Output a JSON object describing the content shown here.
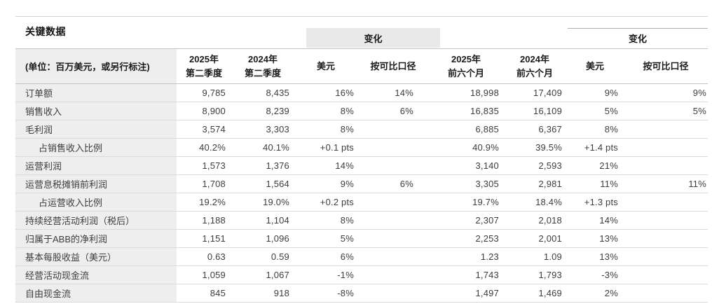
{
  "page": {
    "title": "关键数据"
  },
  "colors": {
    "label_column_bg": "#eeeeee",
    "change_box_bg": "#e9e9e9",
    "row_divider": "#dadada",
    "header_divider": "#c2c2c2",
    "text": "#3d3d3d",
    "heading_text": "#161616"
  },
  "table": {
    "unit_note": "(单位：百万美元，或另行标注)",
    "change_group_quarter": "变化",
    "change_group_half": "变化",
    "col_headers": [
      "2025年\n第二季度",
      "2024年\n第二季度",
      "美元",
      "按可比口径",
      "2025年\n前六个月",
      "2024年\n前六个月",
      "美元",
      "按可比口径"
    ],
    "rows": [
      {
        "label": "订单额",
        "indent": false,
        "c": [
          "9,785",
          "8,435",
          "16%",
          "14%",
          "18,998",
          "17,409",
          "9%",
          "9%"
        ]
      },
      {
        "label": "销售收入",
        "indent": false,
        "c": [
          "8,900",
          "8,239",
          "8%",
          "6%",
          "16,835",
          "16,109",
          "5%",
          "5%"
        ]
      },
      {
        "label": "毛利润",
        "indent": false,
        "c": [
          "3,574",
          "3,303",
          "8%",
          "",
          "6,885",
          "6,367",
          "8%",
          ""
        ]
      },
      {
        "label": "占销售收入比例",
        "indent": true,
        "c": [
          "40.2%",
          "40.1%",
          "+0.1 pts",
          "",
          "40.9%",
          "39.5%",
          "+1.4 pts",
          ""
        ]
      },
      {
        "label": "运营利润",
        "indent": false,
        "c": [
          "1,573",
          "1,376",
          "14%",
          "",
          "3,140",
          "2,593",
          "21%",
          ""
        ]
      },
      {
        "label": "运营息税摊销前利润",
        "indent": false,
        "c": [
          "1,708",
          "1,564",
          "9%",
          "6%",
          "3,305",
          "2,981",
          "11%",
          "11%"
        ]
      },
      {
        "label": "占运营收入比例",
        "indent": true,
        "c": [
          "19.2%",
          "19.0%",
          "+0.2 pts",
          "",
          "19.7%",
          "18.4%",
          "+1.3 pts",
          ""
        ]
      },
      {
        "label": "持续经营活动利润（税后）",
        "indent": false,
        "c": [
          "1,188",
          "1,104",
          "8%",
          "",
          "2,307",
          "2,018",
          "14%",
          ""
        ]
      },
      {
        "label": "归属于ABB的净利润",
        "indent": false,
        "c": [
          "1,151",
          "1,096",
          "5%",
          "",
          "2,253",
          "2,001",
          "13%",
          ""
        ]
      },
      {
        "label": "基本每股收益（美元）",
        "indent": false,
        "c": [
          "0.63",
          "0.59",
          "6%",
          "",
          "1.23",
          "1.09",
          "13%",
          ""
        ]
      },
      {
        "label": "经营活动现金流",
        "indent": false,
        "c": [
          "1,059",
          "1,067",
          "-1%",
          "",
          "1,743",
          "1,793",
          "-3%",
          ""
        ]
      },
      {
        "label": "自由现金流",
        "indent": false,
        "c": [
          "845",
          "918",
          "-8%",
          "",
          "1,497",
          "1,469",
          "2%",
          ""
        ]
      }
    ]
  }
}
